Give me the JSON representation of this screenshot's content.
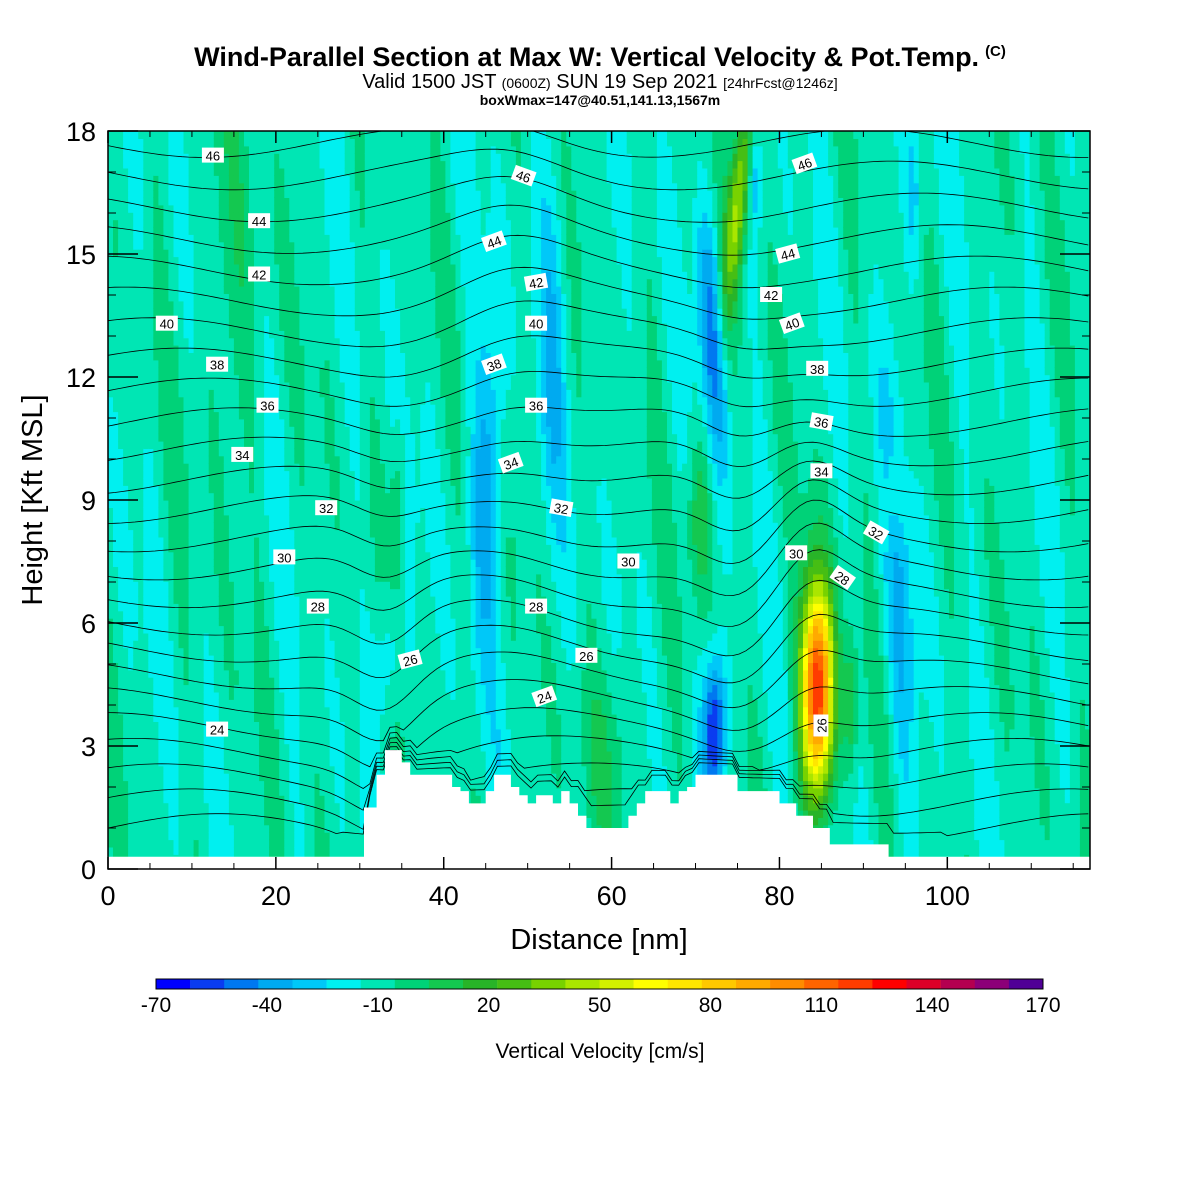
{
  "header": {
    "title": "Wind-Parallel Section at Max W: Vertical Velocity & Pot.Temp.",
    "title_suffix": "(C)",
    "valid_prefix": "Valid 1500 JST",
    "valid_utc": "(0600Z)",
    "valid_date": "SUN 19 Sep 2021",
    "forecast": "[24hrFcst@1246z]",
    "boxinfo": "boxWmax=147@40.51,141.13,1567m"
  },
  "chart_data": {
    "type": "heatmap",
    "xlabel": "Distance [nm]",
    "ylabel": "Height [Kft MSL]",
    "xlim": [
      0,
      117
    ],
    "ylim": [
      0,
      18
    ],
    "x_ticks": [
      "0",
      "20",
      "40",
      "60",
      "80",
      "100"
    ],
    "y_ticks": [
      "0",
      "3",
      "6",
      "9",
      "12",
      "15",
      "18"
    ],
    "colorbar": {
      "label": "Vertical Velocity [cm/s]",
      "tick_labels": [
        "-70",
        "-40",
        "-10",
        "20",
        "50",
        "80",
        "110",
        "140",
        "170"
      ],
      "min": -70,
      "max": 170,
      "step": 10,
      "colors": [
        "#0000ff",
        "#0a3cf0",
        "#0078f0",
        "#00aaf0",
        "#00c8f8",
        "#00f0f0",
        "#00e6b4",
        "#00d278",
        "#14c850",
        "#28b428",
        "#46be14",
        "#78d200",
        "#aae600",
        "#d2f000",
        "#ffff00",
        "#ffe600",
        "#ffc800",
        "#ffaa00",
        "#ff8c00",
        "#ff6400",
        "#ff3c00",
        "#ff0000",
        "#dc0028",
        "#b40050",
        "#8c0078",
        "#500096"
      ]
    },
    "theta_isotherm_labels": [
      "24",
      "26",
      "28",
      "30",
      "32",
      "34",
      "36",
      "38",
      "40",
      "42",
      "44",
      "46"
    ],
    "terrain": {
      "x_nm": [
        0,
        30,
        30.5,
        32,
        33,
        34,
        35,
        36,
        37,
        40,
        41,
        42,
        43,
        45,
        46,
        47,
        48,
        49,
        50,
        51,
        53,
        54,
        55,
        56,
        57,
        59,
        61,
        62,
        63,
        64,
        66,
        67,
        68,
        69,
        70,
        71,
        74,
        75,
        78,
        79,
        80,
        81,
        82,
        83,
        84,
        85,
        86,
        88,
        92,
        93,
        117
      ],
      "height_kft": [
        0.3,
        0.3,
        1.5,
        2.3,
        2.9,
        2.9,
        2.6,
        2.3,
        2.3,
        2.3,
        2.0,
        1.9,
        1.6,
        1.9,
        2.3,
        2.3,
        2.0,
        1.8,
        1.6,
        1.8,
        1.6,
        1.9,
        1.6,
        1.3,
        1.0,
        1.0,
        1.0,
        1.3,
        1.6,
        1.9,
        1.9,
        1.6,
        1.9,
        2.0,
        2.3,
        2.3,
        2.3,
        1.9,
        1.9,
        1.9,
        1.6,
        1.6,
        1.3,
        1.3,
        1.0,
        1.0,
        0.6,
        0.6,
        0.6,
        0.3,
        0.3
      ]
    },
    "velocity_field_features": [
      {
        "x_nm": 84.5,
        "height_kft": 4.2,
        "value_cms": 147
      },
      {
        "x_nm": 72.5,
        "height_kft": 3.4,
        "value_cms": -60
      },
      {
        "x_nm": 72,
        "height_kft": 13,
        "value_cms": -45
      },
      {
        "x_nm": 75,
        "height_kft": 16,
        "value_cms": 50
      },
      {
        "x_nm": 33.5,
        "height_kft": 5,
        "value_cms": -25
      },
      {
        "x_nm": 46,
        "height_kft": 10,
        "value_cms": -30
      }
    ]
  }
}
